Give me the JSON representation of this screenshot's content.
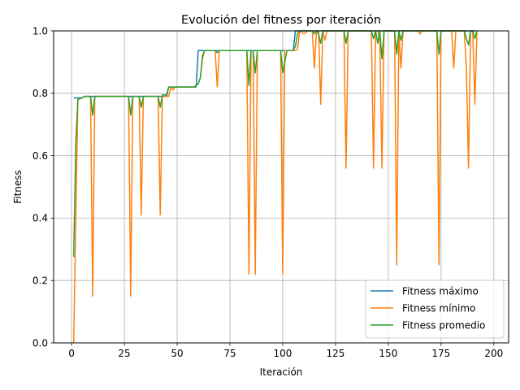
{
  "chart_data": {
    "type": "line",
    "title": "Evolución del fitness por iteración",
    "xlabel": "Iteración",
    "ylabel": "Fitness",
    "xlim": [
      -8.5,
      207
    ],
    "ylim": [
      0,
      1.0
    ],
    "xticks": [
      0,
      25,
      50,
      75,
      100,
      125,
      150,
      175,
      200
    ],
    "yticks": [
      0.0,
      0.2,
      0.4,
      0.6,
      0.8,
      1.0
    ],
    "xtick_labels": [
      "0",
      "25",
      "50",
      "75",
      "100",
      "125",
      "150",
      "175",
      "200"
    ],
    "ytick_labels": [
      "0.0",
      "0.2",
      "0.4",
      "0.6",
      "0.8",
      "1.0"
    ],
    "grid": true,
    "legend_position": "lower-right",
    "series": [
      {
        "name": "Fitness máximo",
        "color": "#1f77b4",
        "points": [
          [
            1,
            0.785
          ],
          [
            5,
            0.785
          ],
          [
            6,
            0.79
          ],
          [
            45,
            0.79
          ],
          [
            46,
            0.82
          ],
          [
            59,
            0.82
          ],
          [
            60,
            0.937
          ],
          [
            105,
            0.937
          ],
          [
            106,
            1.0
          ],
          [
            191,
            1.0
          ]
        ]
      },
      {
        "name": "Fitness mínimo",
        "color": "#ff7f0e",
        "points": [
          [
            1,
            0.0
          ],
          [
            3,
            0.78
          ],
          [
            5,
            0.785
          ],
          [
            6,
            0.79
          ],
          [
            9,
            0.79
          ],
          [
            10,
            0.15
          ],
          [
            11,
            0.79
          ],
          [
            27,
            0.79
          ],
          [
            28,
            0.15
          ],
          [
            29,
            0.79
          ],
          [
            32,
            0.79
          ],
          [
            33,
            0.41
          ],
          [
            34,
            0.79
          ],
          [
            41,
            0.79
          ],
          [
            42,
            0.41
          ],
          [
            43,
            0.79
          ],
          [
            46,
            0.79
          ],
          [
            47,
            0.82
          ],
          [
            48,
            0.81
          ],
          [
            49,
            0.82
          ],
          [
            58,
            0.82
          ],
          [
            60,
            0.83
          ],
          [
            61,
            0.85
          ],
          [
            62,
            0.91
          ],
          [
            63,
            0.937
          ],
          [
            68,
            0.937
          ],
          [
            69,
            0.82
          ],
          [
            70,
            0.937
          ],
          [
            83,
            0.937
          ],
          [
            84,
            0.22
          ],
          [
            85,
            0.937
          ],
          [
            86,
            0.937
          ],
          [
            87,
            0.22
          ],
          [
            88,
            0.937
          ],
          [
            99,
            0.937
          ],
          [
            100,
            0.22
          ],
          [
            101,
            0.937
          ],
          [
            106,
            0.937
          ],
          [
            107,
            0.94
          ],
          [
            108,
            1.0
          ],
          [
            110,
            0.99
          ],
          [
            112,
            1.0
          ],
          [
            114,
            1.0
          ],
          [
            115,
            0.88
          ],
          [
            116,
            1.0
          ],
          [
            117,
            1.0
          ],
          [
            118,
            0.765
          ],
          [
            119,
            1.0
          ],
          [
            120,
            0.97
          ],
          [
            121,
            1.0
          ],
          [
            129,
            1.0
          ],
          [
            130,
            0.56
          ],
          [
            131,
            1.0
          ],
          [
            142,
            1.0
          ],
          [
            143,
            0.56
          ],
          [
            144,
            1.0
          ],
          [
            145,
            1.0
          ],
          [
            146,
            0.97
          ],
          [
            147,
            0.56
          ],
          [
            148,
            1.0
          ],
          [
            153,
            1.0
          ],
          [
            154,
            0.25
          ],
          [
            155,
            1.0
          ],
          [
            156,
            0.88
          ],
          [
            157,
            1.0
          ],
          [
            164,
            1.0
          ],
          [
            165,
            0.99
          ],
          [
            166,
            1.0
          ],
          [
            173,
            1.0
          ],
          [
            174,
            0.25
          ],
          [
            175,
            1.0
          ],
          [
            180,
            1.0
          ],
          [
            181,
            0.88
          ],
          [
            182,
            1.0
          ],
          [
            186,
            1.0
          ],
          [
            187,
            0.88
          ],
          [
            188,
            0.56
          ],
          [
            189,
            1.0
          ],
          [
            190,
            1.0
          ],
          [
            191,
            0.765
          ],
          [
            192,
            1.0
          ]
        ]
      },
      {
        "name": "Fitness promedio",
        "color": "#2ca02c",
        "points": [
          [
            1,
            0.275
          ],
          [
            2,
            0.64
          ],
          [
            3,
            0.78
          ],
          [
            5,
            0.785
          ],
          [
            6,
            0.79
          ],
          [
            9,
            0.79
          ],
          [
            10,
            0.73
          ],
          [
            11,
            0.79
          ],
          [
            27,
            0.79
          ],
          [
            28,
            0.73
          ],
          [
            29,
            0.79
          ],
          [
            32,
            0.79
          ],
          [
            33,
            0.755
          ],
          [
            34,
            0.79
          ],
          [
            41,
            0.79
          ],
          [
            42,
            0.755
          ],
          [
            43,
            0.795
          ],
          [
            45,
            0.795
          ],
          [
            46,
            0.82
          ],
          [
            58,
            0.82
          ],
          [
            59,
            0.825
          ],
          [
            60,
            0.83
          ],
          [
            61,
            0.85
          ],
          [
            62,
            0.92
          ],
          [
            63,
            0.937
          ],
          [
            68,
            0.937
          ],
          [
            69,
            0.93
          ],
          [
            70,
            0.937
          ],
          [
            83,
            0.937
          ],
          [
            84,
            0.825
          ],
          [
            85,
            0.937
          ],
          [
            86,
            0.937
          ],
          [
            87,
            0.865
          ],
          [
            88,
            0.937
          ],
          [
            99,
            0.937
          ],
          [
            100,
            0.865
          ],
          [
            101,
            0.9
          ],
          [
            102,
            0.937
          ],
          [
            105,
            0.937
          ],
          [
            106,
            0.95
          ],
          [
            107,
            0.99
          ],
          [
            108,
            1.0
          ],
          [
            114,
            1.0
          ],
          [
            115,
            0.99
          ],
          [
            116,
            1.0
          ],
          [
            117,
            0.99
          ],
          [
            118,
            0.96
          ],
          [
            119,
            1.0
          ],
          [
            129,
            1.0
          ],
          [
            130,
            0.96
          ],
          [
            131,
            1.0
          ],
          [
            142,
            1.0
          ],
          [
            143,
            0.975
          ],
          [
            144,
            1.0
          ],
          [
            145,
            0.96
          ],
          [
            146,
            1.0
          ],
          [
            147,
            0.91
          ],
          [
            148,
            1.0
          ],
          [
            153,
            1.0
          ],
          [
            154,
            0.925
          ],
          [
            155,
            1.0
          ],
          [
            156,
            0.97
          ],
          [
            157,
            1.0
          ],
          [
            173,
            1.0
          ],
          [
            174,
            0.925
          ],
          [
            175,
            1.0
          ],
          [
            186,
            1.0
          ],
          [
            187,
            0.975
          ],
          [
            188,
            0.955
          ],
          [
            189,
            1.0
          ],
          [
            190,
            1.0
          ],
          [
            191,
            0.975
          ],
          [
            192,
            1.0
          ]
        ]
      }
    ]
  }
}
